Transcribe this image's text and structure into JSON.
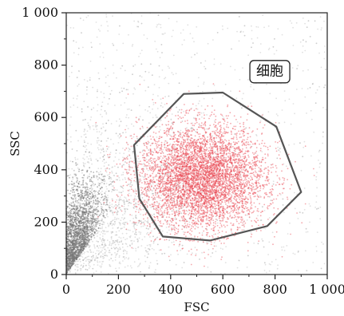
{
  "chart_data": {
    "type": "scatter",
    "title": "",
    "xlabel": "FSC",
    "ylabel": "SSC",
    "xlim": [
      0,
      1000
    ],
    "ylim": [
      0,
      1000
    ],
    "grid": false,
    "x_ticks": [
      {
        "value": 0,
        "label": "0"
      },
      {
        "value": 200,
        "label": "200"
      },
      {
        "value": 400,
        "label": "400"
      },
      {
        "value": 600,
        "label": "600"
      },
      {
        "value": 800,
        "label": "800"
      },
      {
        "value": 1000,
        "label": "1 000"
      }
    ],
    "y_ticks": [
      {
        "value": 0,
        "label": "0"
      },
      {
        "value": 200,
        "label": "200"
      },
      {
        "value": 400,
        "label": "400"
      },
      {
        "value": 600,
        "label": "600"
      },
      {
        "value": 800,
        "label": "800"
      },
      {
        "value": 1000,
        "label": "1 000"
      }
    ],
    "gate": {
      "label": "细胞",
      "color": "#555555",
      "vertices": [
        [
          260,
          495
        ],
        [
          450,
          690
        ],
        [
          600,
          695
        ],
        [
          805,
          565
        ],
        [
          900,
          315
        ],
        [
          770,
          185
        ],
        [
          550,
          130
        ],
        [
          370,
          145
        ],
        [
          280,
          290
        ]
      ]
    },
    "series": [
      {
        "role": "background",
        "color": "#aaaaaa",
        "center": [
          150,
          300
        ],
        "spread": [
          250,
          260
        ]
      },
      {
        "role": "debris",
        "color": "#777777",
        "center": [
          40,
          90
        ],
        "spread": [
          60,
          120
        ]
      },
      {
        "role": "gated",
        "color": "#e8414b",
        "center": [
          520,
          370
        ],
        "spread": [
          120,
          100
        ]
      }
    ],
    "label_box": {
      "text_x": 780,
      "text_y": 775
    }
  }
}
